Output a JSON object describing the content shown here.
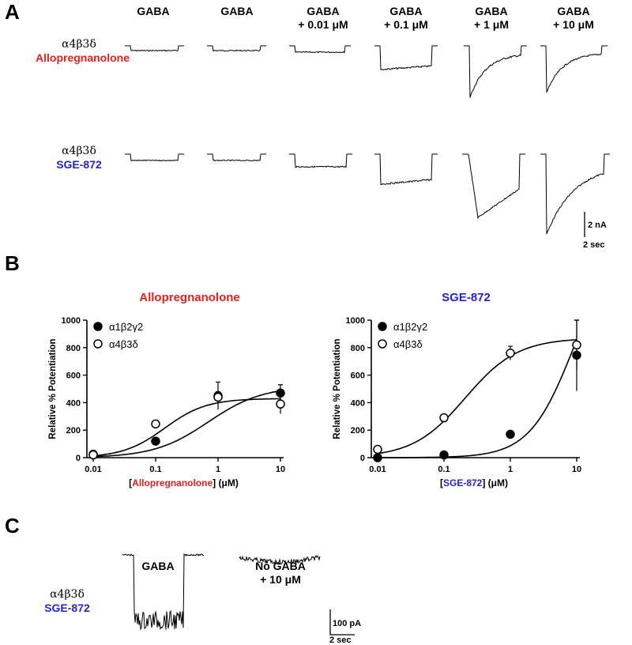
{
  "panel_a": {
    "letter": "A",
    "columns": [
      "GABA",
      "GABA",
      "GABA\n+ 0.01 μM",
      "GABA\n+ 0.1 μM",
      "GABA\n+ 1 μM",
      "GABA\n+ 10 μM"
    ],
    "rows": [
      {
        "subunit": "α4β3δ",
        "drug": "Allopregnanolone",
        "drug_color": "#e8211d"
      },
      {
        "subunit": "α4β3δ",
        "drug": "SGE-872",
        "drug_color": "#2424d6"
      }
    ],
    "scale_current": "2 nA",
    "scale_time": "2 sec"
  },
  "panel_b": {
    "letter": "B",
    "x_prefix": "[",
    "x_suffix": "] (μM)",
    "ylabel": "Relative % Potentiation"
  },
  "panel_c": {
    "letter": "C",
    "row": {
      "subunit": "α4β3δ",
      "drug": "SGE-872"
    },
    "col1": "GABA",
    "col2": "No GABA\n+ 10 μM",
    "scale_current": "100 pA",
    "scale_time": "2 sec"
  },
  "colors": {
    "allopregnanolone": "#e8211d",
    "sge872": "#2424d6"
  },
  "chart_data": [
    {
      "type": "scatter",
      "title": "Allopregnanolone",
      "xlabel": "[Allopregnanolone] (μM)",
      "ylabel": "Relative % Potentiation",
      "x_scale": "log",
      "x_ticks": [
        0.01,
        0.1,
        1,
        10
      ],
      "y_ticks": [
        0,
        200,
        400,
        600,
        800,
        1000
      ],
      "xlim": [
        0.01,
        10
      ],
      "ylim": [
        0,
        1000
      ],
      "legend_position": "top-left",
      "series": [
        {
          "name": "α1β2γ2",
          "marker": "filled-circle",
          "x": [
            0.01,
            0.1,
            1,
            10
          ],
          "y": [
            25,
            120,
            450,
            470
          ],
          "err": [
            10,
            25,
            100,
            60
          ],
          "fit": {
            "bottom": 0,
            "top": 520,
            "ec50": 0.7,
            "hill": 1.0
          }
        },
        {
          "name": "α4β3δ",
          "marker": "open-circle",
          "x": [
            0.01,
            0.1,
            1,
            10
          ],
          "y": [
            20,
            245,
            440,
            390
          ],
          "err": [
            10,
            20,
            40,
            70
          ],
          "fit": {
            "bottom": 0,
            "top": 430,
            "ec50": 0.14,
            "hill": 1.3
          }
        }
      ]
    },
    {
      "type": "scatter",
      "title": "SGE-872",
      "xlabel": "[SGE-872] (μM)",
      "ylabel": "Relative % Potentiation",
      "x_scale": "log",
      "x_ticks": [
        0.01,
        0.1,
        1,
        10
      ],
      "y_ticks": [
        0,
        200,
        400,
        600,
        800,
        1000
      ],
      "xlim": [
        0.01,
        10
      ],
      "ylim": [
        0,
        1000
      ],
      "legend_position": "top-left",
      "series": [
        {
          "name": "α1β2γ2",
          "marker": "filled-circle",
          "x": [
            0.01,
            0.1,
            1,
            10
          ],
          "y": [
            0,
            20,
            170,
            745
          ],
          "err": [
            5,
            10,
            20,
            260
          ],
          "fit": {
            "bottom": 0,
            "top": 1600,
            "ec50": 9,
            "hill": 1.3
          }
        },
        {
          "name": "α4β3δ",
          "marker": "open-circle",
          "x": [
            0.01,
            0.1,
            1,
            10
          ],
          "y": [
            60,
            290,
            760,
            820
          ],
          "err": [
            15,
            20,
            50,
            180
          ],
          "fit": {
            "bottom": 0,
            "top": 870,
            "ec50": 0.21,
            "hill": 1.1
          }
        }
      ]
    }
  ]
}
